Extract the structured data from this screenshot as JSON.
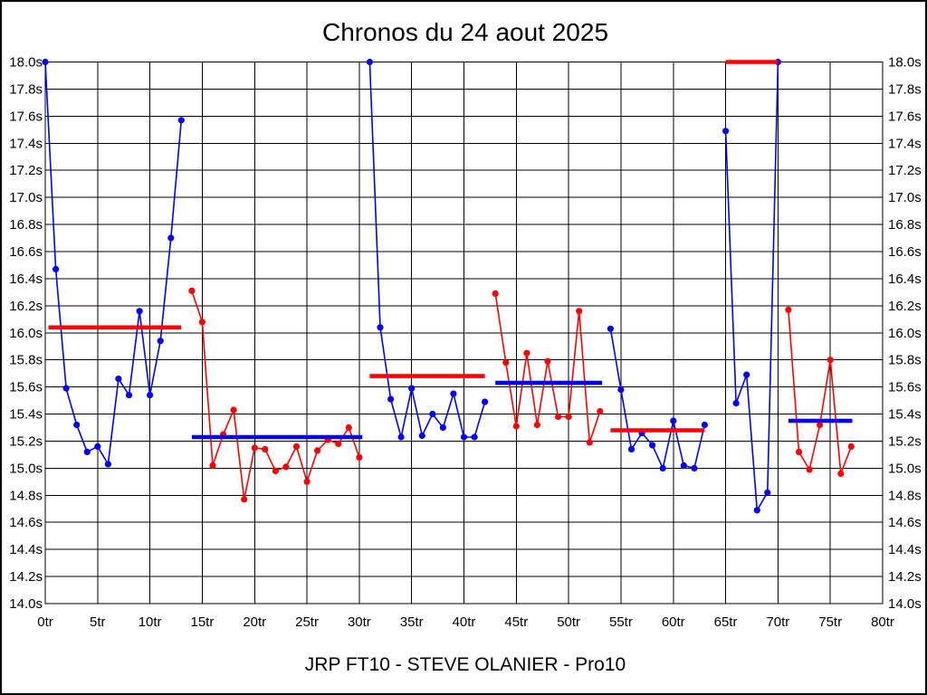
{
  "title": "Chronos du 24 aout 2025",
  "caption": "JRP FT10 - STEVE OLANIER - Pro10",
  "colors": {
    "blue": "#0000ff",
    "red": "#ff0000",
    "grid": "#000000",
    "background": "#ffffff"
  },
  "chart_data": {
    "type": "line",
    "title": "Chronos du 24 aout 2025",
    "subtitle": "JRP FT10 - STEVE OLANIER - Pro10",
    "x_unit": "tr",
    "y_unit": "s",
    "xlim": [
      0,
      80
    ],
    "ylim": [
      14.0,
      18.0
    ],
    "grid": true,
    "legend": "none",
    "x_tick_values": [
      0,
      5,
      10,
      15,
      20,
      25,
      30,
      35,
      40,
      45,
      50,
      55,
      60,
      65,
      70,
      75,
      80
    ],
    "x_tick_labels": [
      "0tr",
      "5tr",
      "10tr",
      "15tr",
      "20tr",
      "25tr",
      "30tr",
      "35tr",
      "40tr",
      "45tr",
      "50tr",
      "55tr",
      "60tr",
      "65tr",
      "70tr",
      "75tr",
      "80tr"
    ],
    "y_tick_values": [
      14.0,
      14.2,
      14.4,
      14.6,
      14.8,
      15.0,
      15.2,
      15.4,
      15.6,
      15.8,
      16.0,
      16.2,
      16.4,
      16.6,
      16.8,
      17.0,
      17.2,
      17.4,
      17.6,
      17.8,
      18.0
    ],
    "y_tick_labels": [
      "14.0s",
      "14.2s",
      "14.4s",
      "14.6s",
      "14.8s",
      "15.0s",
      "15.2s",
      "15.4s",
      "15.6s",
      "15.8s",
      "16.0s",
      "16.2s",
      "16.4s",
      "16.6s",
      "16.8s",
      "17.0s",
      "17.2s",
      "17.4s",
      "17.6s",
      "17.8s",
      "18.0s"
    ],
    "series": [
      {
        "color": "blue",
        "points": [
          [
            0,
            18.0
          ],
          [
            1,
            16.47
          ],
          [
            2,
            15.59
          ],
          [
            3,
            15.32
          ],
          [
            4,
            15.12
          ],
          [
            5,
            15.16
          ],
          [
            6,
            15.03
          ],
          [
            7,
            15.66
          ],
          [
            8,
            15.54
          ],
          [
            9,
            16.16
          ],
          [
            10,
            15.54
          ],
          [
            11,
            15.94
          ],
          [
            12,
            16.7
          ],
          [
            13,
            17.57
          ]
        ]
      },
      {
        "color": "red",
        "points": [
          [
            14,
            16.31
          ],
          [
            15,
            16.08
          ],
          [
            16,
            15.02
          ],
          [
            17,
            15.25
          ],
          [
            18,
            15.43
          ],
          [
            19,
            14.77
          ],
          [
            20,
            15.15
          ],
          [
            21,
            15.14
          ],
          [
            22,
            14.98
          ],
          [
            23,
            15.01
          ],
          [
            24,
            15.16
          ],
          [
            25,
            14.9
          ],
          [
            26,
            15.13
          ],
          [
            27,
            15.21
          ],
          [
            28,
            15.18
          ],
          [
            29,
            15.3
          ],
          [
            30,
            15.08
          ]
        ]
      },
      {
        "color": "blue",
        "points": [
          [
            31,
            18.0
          ],
          [
            32,
            16.04
          ],
          [
            33,
            15.51
          ],
          [
            34,
            15.23
          ],
          [
            35,
            15.59
          ],
          [
            36,
            15.24
          ],
          [
            37,
            15.4
          ],
          [
            38,
            15.3
          ],
          [
            39,
            15.55
          ],
          [
            40,
            15.23
          ],
          [
            41,
            15.23
          ],
          [
            42,
            15.49
          ]
        ]
      },
      {
        "color": "red",
        "points": [
          [
            43,
            16.29
          ],
          [
            44,
            15.78
          ],
          [
            45,
            15.31
          ],
          [
            46,
            15.85
          ],
          [
            47,
            15.32
          ],
          [
            48,
            15.79
          ],
          [
            49,
            15.38
          ],
          [
            50,
            15.38
          ],
          [
            51,
            16.16
          ],
          [
            52,
            15.19
          ],
          [
            53,
            15.42
          ]
        ]
      },
      {
        "color": "blue",
        "points": [
          [
            54,
            16.03
          ],
          [
            55,
            15.58
          ],
          [
            56,
            15.14
          ],
          [
            57,
            15.26
          ],
          [
            58,
            15.17
          ],
          [
            59,
            15.0
          ],
          [
            60,
            15.35
          ],
          [
            61,
            15.02
          ],
          [
            62,
            15.0
          ],
          [
            63,
            15.32
          ]
        ]
      },
      {
        "color": "blue",
        "points": [
          [
            65,
            17.49
          ],
          [
            66,
            15.48
          ],
          [
            67,
            15.69
          ],
          [
            68,
            14.69
          ],
          [
            69,
            14.82
          ],
          [
            70,
            18.0
          ]
        ]
      },
      {
        "color": "red",
        "points": [
          [
            71,
            16.17
          ],
          [
            72,
            15.12
          ],
          [
            73,
            14.99
          ],
          [
            74,
            15.32
          ],
          [
            75,
            15.8
          ],
          [
            76,
            14.96
          ],
          [
            77,
            15.16
          ]
        ]
      }
    ],
    "average_lines": [
      {
        "color": "red",
        "from": 0.3,
        "to": 13.0,
        "value": 16.04
      },
      {
        "color": "blue",
        "from": 14.0,
        "to": 30.3,
        "value": 15.23
      },
      {
        "color": "red",
        "from": 31.0,
        "to": 42.0,
        "value": 15.68
      },
      {
        "color": "blue",
        "from": 43.0,
        "to": 53.2,
        "value": 15.63
      },
      {
        "color": "red",
        "from": 54.0,
        "to": 63.0,
        "value": 15.28
      },
      {
        "color": "red",
        "from": 65.0,
        "to": 70.0,
        "value": 18.0
      },
      {
        "color": "blue",
        "from": 71.0,
        "to": 77.1,
        "value": 15.35
      }
    ]
  }
}
